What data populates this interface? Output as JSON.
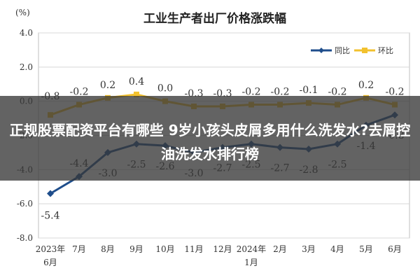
{
  "colors": {
    "series1": "#1f4e8c",
    "series2": "#f2c12e",
    "grid": "#d8d8d8",
    "overlay": "#373737"
  },
  "overlay": {
    "text": "正规股票配资平台有哪些 9岁小孩头皮屑多用什么洗发水?去屑控油洗发水排行榜"
  },
  "chart_data": {
    "type": "line",
    "title": "工业生产者出厂价格涨跌幅",
    "unit": "(%)",
    "categories": [
      "2023年\n6月",
      "7月",
      "8月",
      "9月",
      "10月",
      "11月",
      "12月",
      "2024年\n1月",
      "2月",
      "3月",
      "4月",
      "5月",
      "6月"
    ],
    "yticks": [
      "4.0",
      "2.0",
      "0.0",
      "-2.0",
      "-4.0",
      "-6.0",
      "-8.0"
    ],
    "ylim": [
      -8,
      4
    ],
    "grid": true,
    "legend": "top-right",
    "series": [
      {
        "name": "同比",
        "values": [
          -5.4,
          -4.4,
          -3.0,
          -2.5,
          -2.6,
          -3.0,
          -2.7,
          -2.5,
          -2.7,
          -2.8,
          -2.5,
          -1.4,
          -0.8
        ],
        "labels": [
          "-5.4",
          "-4.4",
          "-3.0",
          "-2.5",
          "-2.6",
          "-3.0",
          "-2.7",
          "-2.5",
          "-2.7",
          "-2.8",
          "-2.5",
          "-1.4",
          "-0.8"
        ]
      },
      {
        "name": "环比",
        "values": [
          -0.8,
          -0.2,
          0.2,
          0.4,
          0.0,
          -0.3,
          -0.3,
          -0.2,
          -0.2,
          -0.1,
          -0.2,
          0.2,
          -0.2
        ],
        "labels": [
          "-0.8",
          "-0.2",
          "0.2",
          "0.4",
          "0.0",
          "-0.3",
          "-0.3",
          "-0.2",
          "-0.2",
          "-0.1",
          "-0.2",
          "0.2",
          "-0.2"
        ]
      }
    ]
  }
}
